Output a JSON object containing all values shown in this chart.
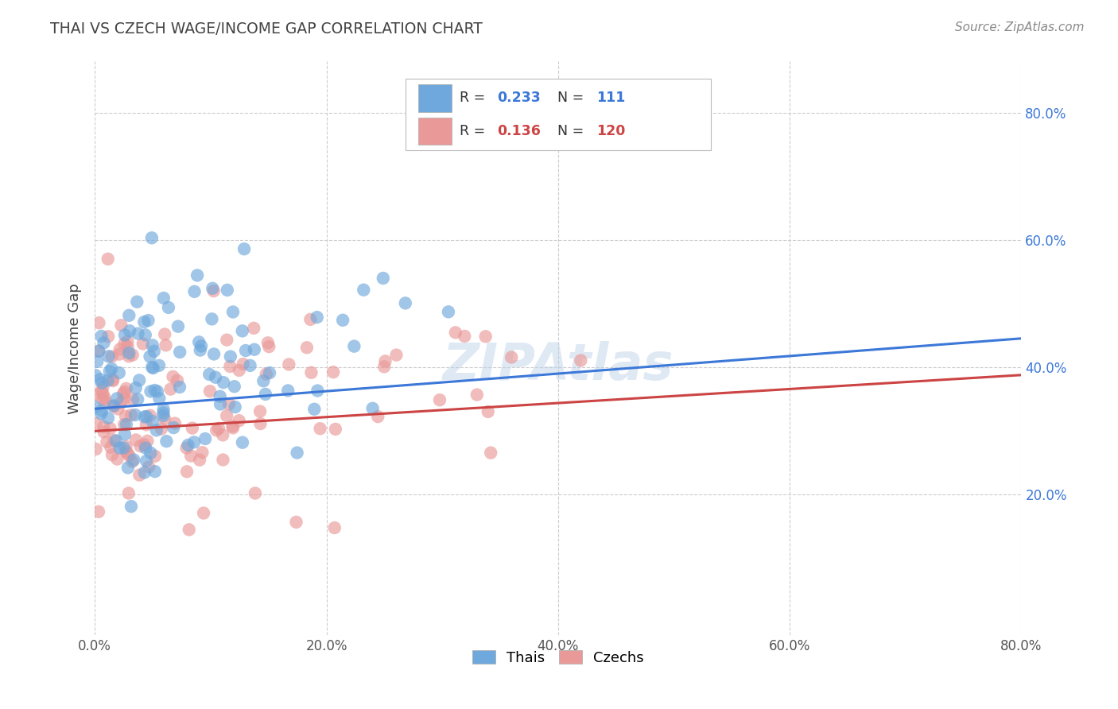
{
  "title": "THAI VS CZECH WAGE/INCOME GAP CORRELATION CHART",
  "source": "Source: ZipAtlas.com",
  "ylabel": "Wage/Income Gap",
  "thai_R": 0.233,
  "thai_N": 111,
  "czech_R": 0.136,
  "czech_N": 120,
  "thai_color": "#6fa8dc",
  "czech_color": "#ea9999",
  "thai_line_color": "#3c78d8",
  "czech_line_color": "#cc4444",
  "watermark": "ZIPAtlas",
  "background_color": "#ffffff",
  "grid_color": "#cccccc",
  "title_color": "#434343",
  "source_color": "#888888",
  "legend_label_thai": "Thais",
  "legend_label_czech": "Czechs",
  "thai_line_intercept": 0.335,
  "thai_line_slope": 0.138,
  "czech_line_intercept": 0.3,
  "czech_line_slope": 0.11,
  "xlim": [
    0.0,
    0.8
  ],
  "ylim": [
    -0.02,
    0.88
  ],
  "xticks": [
    0.0,
    0.2,
    0.4,
    0.6,
    0.8
  ],
  "yticks": [
    0.2,
    0.4,
    0.6,
    0.8
  ]
}
